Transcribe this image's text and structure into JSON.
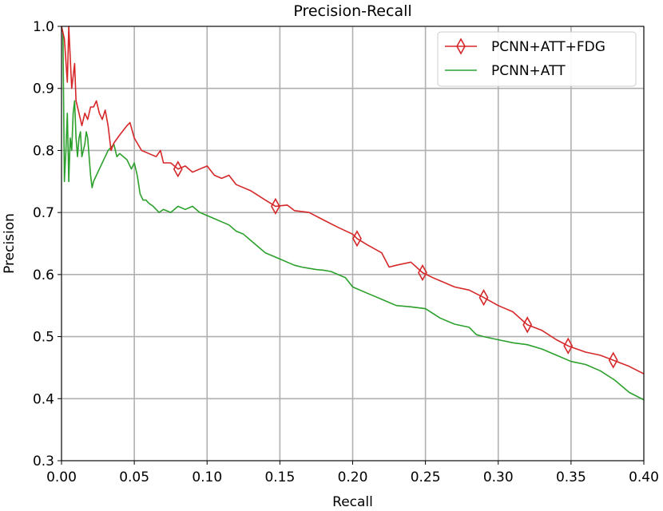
{
  "chart_data": {
    "type": "line",
    "title": "Precision-Recall",
    "xlabel": "Recall",
    "ylabel": "Precision",
    "xlim": [
      0.0,
      0.4
    ],
    "ylim": [
      0.3,
      1.0
    ],
    "xticks": [
      "0.00",
      "0.05",
      "0.10",
      "0.15",
      "0.20",
      "0.25",
      "0.30",
      "0.35",
      "0.40"
    ],
    "yticks": [
      "0.3",
      "0.4",
      "0.5",
      "0.6",
      "0.7",
      "0.8",
      "0.9",
      "1.0"
    ],
    "grid": true,
    "legend_position": "top-right",
    "series": [
      {
        "name": "PCNN+ATT+FDG",
        "color": "#d62728",
        "marker": "thin-diamond",
        "marker_points": [
          [
            0.08,
            0.77
          ],
          [
            0.147,
            0.71
          ],
          [
            0.203,
            0.658
          ],
          [
            0.248,
            0.603
          ],
          [
            0.29,
            0.563
          ],
          [
            0.32,
            0.519
          ],
          [
            0.348,
            0.485
          ],
          [
            0.379,
            0.462
          ]
        ],
        "points": [
          [
            0.0,
            1.0
          ],
          [
            0.002,
            0.98
          ],
          [
            0.004,
            0.91
          ],
          [
            0.005,
            1.0
          ],
          [
            0.006,
            0.95
          ],
          [
            0.007,
            0.9
          ],
          [
            0.008,
            0.92
          ],
          [
            0.009,
            0.94
          ],
          [
            0.01,
            0.88
          ],
          [
            0.012,
            0.86
          ],
          [
            0.014,
            0.84
          ],
          [
            0.016,
            0.86
          ],
          [
            0.018,
            0.85
          ],
          [
            0.02,
            0.87
          ],
          [
            0.022,
            0.87
          ],
          [
            0.024,
            0.88
          ],
          [
            0.026,
            0.86
          ],
          [
            0.028,
            0.85
          ],
          [
            0.03,
            0.865
          ],
          [
            0.032,
            0.84
          ],
          [
            0.034,
            0.8
          ],
          [
            0.036,
            0.812
          ],
          [
            0.04,
            0.825
          ],
          [
            0.045,
            0.84
          ],
          [
            0.047,
            0.845
          ],
          [
            0.05,
            0.82
          ],
          [
            0.055,
            0.8
          ],
          [
            0.06,
            0.795
          ],
          [
            0.065,
            0.79
          ],
          [
            0.068,
            0.8
          ],
          [
            0.07,
            0.78
          ],
          [
            0.075,
            0.78
          ],
          [
            0.08,
            0.77
          ],
          [
            0.085,
            0.775
          ],
          [
            0.09,
            0.765
          ],
          [
            0.095,
            0.77
          ],
          [
            0.1,
            0.775
          ],
          [
            0.105,
            0.76
          ],
          [
            0.11,
            0.755
          ],
          [
            0.115,
            0.76
          ],
          [
            0.12,
            0.745
          ],
          [
            0.13,
            0.735
          ],
          [
            0.14,
            0.72
          ],
          [
            0.147,
            0.71
          ],
          [
            0.155,
            0.712
          ],
          [
            0.16,
            0.703
          ],
          [
            0.17,
            0.7
          ],
          [
            0.18,
            0.688
          ],
          [
            0.19,
            0.676
          ],
          [
            0.2,
            0.665
          ],
          [
            0.203,
            0.658
          ],
          [
            0.21,
            0.648
          ],
          [
            0.22,
            0.635
          ],
          [
            0.225,
            0.612
          ],
          [
            0.23,
            0.615
          ],
          [
            0.24,
            0.62
          ],
          [
            0.248,
            0.603
          ],
          [
            0.255,
            0.595
          ],
          [
            0.26,
            0.59
          ],
          [
            0.27,
            0.58
          ],
          [
            0.28,
            0.575
          ],
          [
            0.29,
            0.563
          ],
          [
            0.3,
            0.55
          ],
          [
            0.31,
            0.54
          ],
          [
            0.32,
            0.519
          ],
          [
            0.33,
            0.51
          ],
          [
            0.34,
            0.495
          ],
          [
            0.348,
            0.485
          ],
          [
            0.36,
            0.475
          ],
          [
            0.37,
            0.47
          ],
          [
            0.379,
            0.462
          ],
          [
            0.39,
            0.452
          ],
          [
            0.4,
            0.44
          ]
        ]
      },
      {
        "name": "PCNN+ATT",
        "color": "#2ca02c",
        "points": [
          [
            0.0,
            1.0
          ],
          [
            0.001,
            0.99
          ],
          [
            0.002,
            0.75
          ],
          [
            0.003,
            0.8
          ],
          [
            0.004,
            0.86
          ],
          [
            0.005,
            0.75
          ],
          [
            0.006,
            0.82
          ],
          [
            0.007,
            0.8
          ],
          [
            0.008,
            0.86
          ],
          [
            0.009,
            0.88
          ],
          [
            0.01,
            0.82
          ],
          [
            0.011,
            0.79
          ],
          [
            0.012,
            0.82
          ],
          [
            0.013,
            0.83
          ],
          [
            0.014,
            0.79
          ],
          [
            0.015,
            0.8
          ],
          [
            0.016,
            0.81
          ],
          [
            0.017,
            0.83
          ],
          [
            0.018,
            0.82
          ],
          [
            0.019,
            0.79
          ],
          [
            0.02,
            0.76
          ],
          [
            0.021,
            0.74
          ],
          [
            0.022,
            0.75
          ],
          [
            0.024,
            0.76
          ],
          [
            0.026,
            0.77
          ],
          [
            0.028,
            0.78
          ],
          [
            0.03,
            0.79
          ],
          [
            0.032,
            0.8
          ],
          [
            0.034,
            0.805
          ],
          [
            0.036,
            0.81
          ],
          [
            0.038,
            0.79
          ],
          [
            0.04,
            0.795
          ],
          [
            0.045,
            0.785
          ],
          [
            0.048,
            0.77
          ],
          [
            0.05,
            0.78
          ],
          [
            0.052,
            0.76
          ],
          [
            0.054,
            0.73
          ],
          [
            0.056,
            0.72
          ],
          [
            0.058,
            0.72
          ],
          [
            0.06,
            0.715
          ],
          [
            0.063,
            0.71
          ],
          [
            0.067,
            0.7
          ],
          [
            0.07,
            0.705
          ],
          [
            0.075,
            0.7
          ],
          [
            0.08,
            0.71
          ],
          [
            0.085,
            0.705
          ],
          [
            0.09,
            0.71
          ],
          [
            0.095,
            0.7
          ],
          [
            0.1,
            0.695
          ],
          [
            0.105,
            0.69
          ],
          [
            0.11,
            0.685
          ],
          [
            0.115,
            0.68
          ],
          [
            0.12,
            0.67
          ],
          [
            0.125,
            0.665
          ],
          [
            0.13,
            0.655
          ],
          [
            0.135,
            0.645
          ],
          [
            0.14,
            0.635
          ],
          [
            0.145,
            0.63
          ],
          [
            0.15,
            0.625
          ],
          [
            0.155,
            0.62
          ],
          [
            0.16,
            0.615
          ],
          [
            0.165,
            0.612
          ],
          [
            0.17,
            0.61
          ],
          [
            0.175,
            0.608
          ],
          [
            0.18,
            0.607
          ],
          [
            0.185,
            0.605
          ],
          [
            0.19,
            0.6
          ],
          [
            0.195,
            0.595
          ],
          [
            0.2,
            0.58
          ],
          [
            0.21,
            0.57
          ],
          [
            0.22,
            0.56
          ],
          [
            0.23,
            0.55
          ],
          [
            0.24,
            0.548
          ],
          [
            0.25,
            0.545
          ],
          [
            0.26,
            0.53
          ],
          [
            0.27,
            0.52
          ],
          [
            0.28,
            0.515
          ],
          [
            0.285,
            0.503
          ],
          [
            0.29,
            0.5
          ],
          [
            0.3,
            0.495
          ],
          [
            0.31,
            0.49
          ],
          [
            0.32,
            0.487
          ],
          [
            0.33,
            0.48
          ],
          [
            0.34,
            0.47
          ],
          [
            0.35,
            0.46
          ],
          [
            0.36,
            0.455
          ],
          [
            0.37,
            0.445
          ],
          [
            0.38,
            0.43
          ],
          [
            0.39,
            0.41
          ],
          [
            0.4,
            0.398
          ]
        ]
      }
    ]
  }
}
